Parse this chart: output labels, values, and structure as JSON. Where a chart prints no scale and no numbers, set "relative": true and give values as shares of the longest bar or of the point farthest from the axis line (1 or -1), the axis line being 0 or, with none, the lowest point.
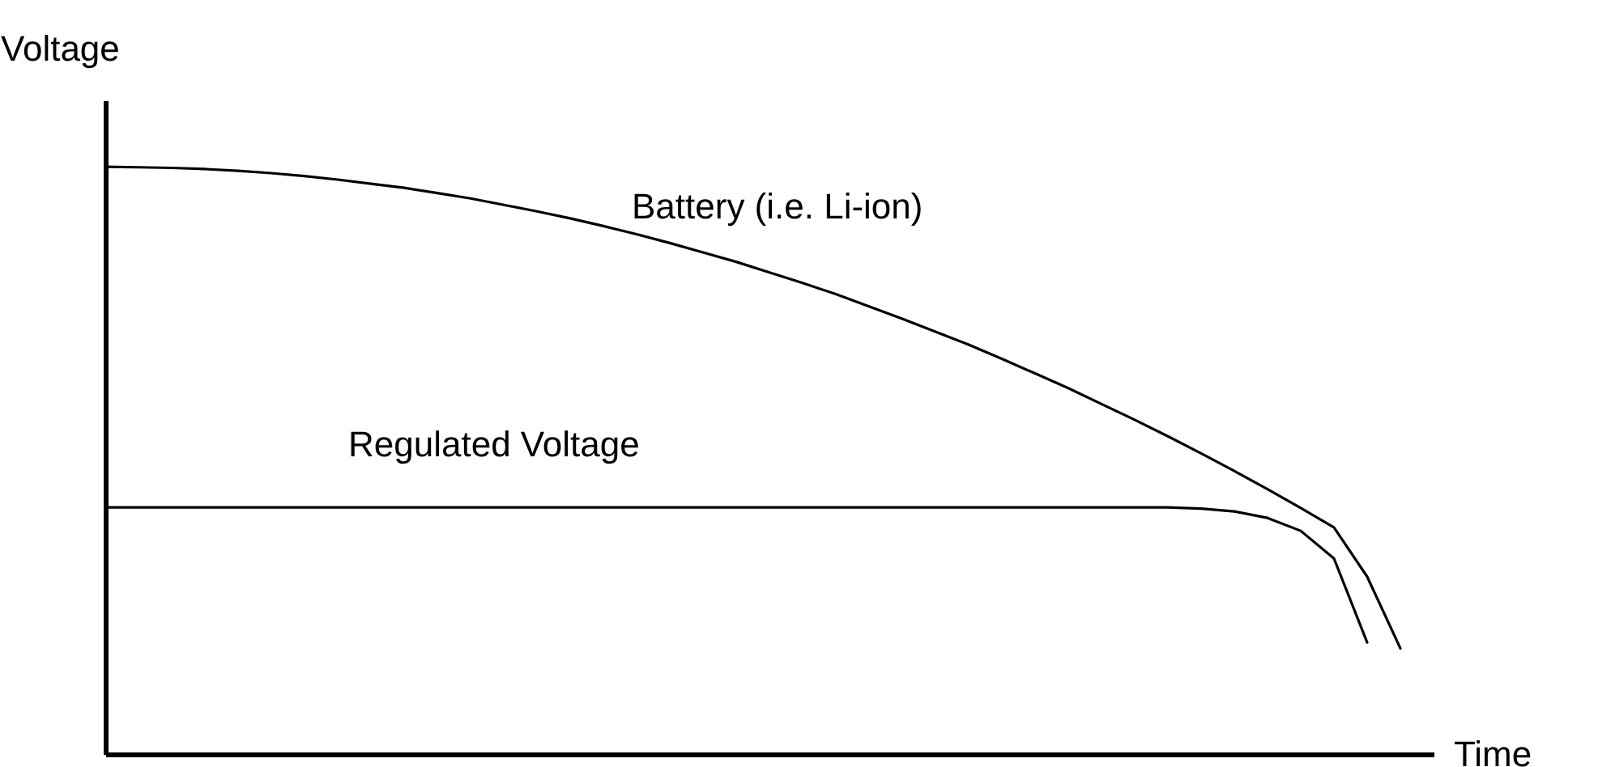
{
  "chart_data": {
    "type": "line",
    "relative": true,
    "xlabel": "Time",
    "ylabel": "Voltage",
    "grid": false,
    "tick_labels": false,
    "line_style": "solid",
    "marker": "none",
    "categories": [
      null,
      null,
      null,
      null,
      null,
      null,
      null,
      null,
      null,
      null,
      null,
      null,
      null,
      null,
      null,
      null,
      null,
      null,
      null,
      null,
      null,
      null,
      null,
      null,
      null,
      null,
      null,
      null,
      null,
      null,
      null,
      null,
      null,
      null,
      null,
      null,
      null,
      null,
      null,
      null,
      null
    ],
    "series": [
      {
        "name": "Battery (i.e. Li-ion)",
        "color": "#000000",
        "values": [
          1.0,
          0.999,
          0.998,
          0.996,
          0.993,
          0.989,
          0.984,
          0.978,
          0.971,
          0.964,
          0.955,
          0.946,
          0.935,
          0.924,
          0.912,
          0.899,
          0.885,
          0.87,
          0.854,
          0.838,
          0.82,
          0.802,
          0.783,
          0.762,
          0.741,
          0.719,
          0.697,
          0.673,
          0.648,
          0.623,
          0.596,
          0.569,
          0.541,
          0.512,
          0.482,
          0.451,
          0.419,
          0.386,
          0.302,
          0.18,
          null
        ]
      },
      {
        "name": "Regulated Voltage",
        "color": "#000000",
        "values": [
          0.42,
          0.42,
          0.42,
          0.42,
          0.42,
          0.42,
          0.42,
          0.42,
          0.42,
          0.42,
          0.42,
          0.42,
          0.42,
          0.42,
          0.42,
          0.42,
          0.42,
          0.42,
          0.42,
          0.42,
          0.42,
          0.42,
          0.42,
          0.42,
          0.42,
          0.42,
          0.42,
          0.42,
          0.42,
          0.42,
          0.42,
          0.42,
          0.42,
          0.418,
          0.413,
          0.402,
          0.38,
          0.333,
          0.19,
          null,
          null
        ]
      }
    ]
  }
}
